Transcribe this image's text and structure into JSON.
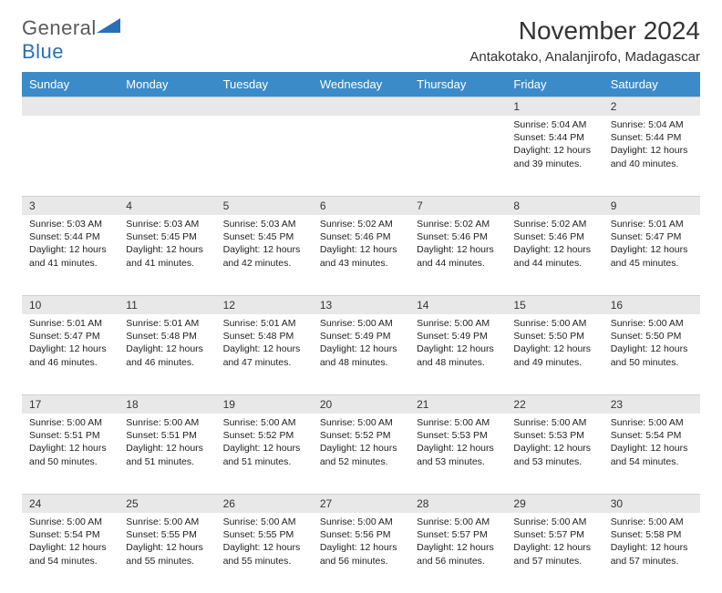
{
  "logo": {
    "general": "General",
    "blue": "Blue"
  },
  "title": "November 2024",
  "location": "Antakotako, Analanjirofo, Madagascar",
  "colors": {
    "header_bg": "#3b8bc9",
    "header_fg": "#ffffff",
    "daynum_bg": "#e8e8e8",
    "text": "#222222",
    "logo_gray": "#5a5a5a",
    "logo_blue": "#2a6fb5",
    "rule": "#bcbcbc"
  },
  "typography": {
    "title_fontsize": 28,
    "location_fontsize": 15,
    "dayheader_fontsize": 13,
    "daynum_fontsize": 12,
    "body_fontsize": 10.5
  },
  "day_headers": [
    "Sunday",
    "Monday",
    "Tuesday",
    "Wednesday",
    "Thursday",
    "Friday",
    "Saturday"
  ],
  "weeks": [
    [
      null,
      null,
      null,
      null,
      null,
      {
        "n": "1",
        "sunrise": "Sunrise: 5:04 AM",
        "sunset": "Sunset: 5:44 PM",
        "daylight": "Daylight: 12 hours and 39 minutes."
      },
      {
        "n": "2",
        "sunrise": "Sunrise: 5:04 AM",
        "sunset": "Sunset: 5:44 PM",
        "daylight": "Daylight: 12 hours and 40 minutes."
      }
    ],
    [
      {
        "n": "3",
        "sunrise": "Sunrise: 5:03 AM",
        "sunset": "Sunset: 5:44 PM",
        "daylight": "Daylight: 12 hours and 41 minutes."
      },
      {
        "n": "4",
        "sunrise": "Sunrise: 5:03 AM",
        "sunset": "Sunset: 5:45 PM",
        "daylight": "Daylight: 12 hours and 41 minutes."
      },
      {
        "n": "5",
        "sunrise": "Sunrise: 5:03 AM",
        "sunset": "Sunset: 5:45 PM",
        "daylight": "Daylight: 12 hours and 42 minutes."
      },
      {
        "n": "6",
        "sunrise": "Sunrise: 5:02 AM",
        "sunset": "Sunset: 5:46 PM",
        "daylight": "Daylight: 12 hours and 43 minutes."
      },
      {
        "n": "7",
        "sunrise": "Sunrise: 5:02 AM",
        "sunset": "Sunset: 5:46 PM",
        "daylight": "Daylight: 12 hours and 44 minutes."
      },
      {
        "n": "8",
        "sunrise": "Sunrise: 5:02 AM",
        "sunset": "Sunset: 5:46 PM",
        "daylight": "Daylight: 12 hours and 44 minutes."
      },
      {
        "n": "9",
        "sunrise": "Sunrise: 5:01 AM",
        "sunset": "Sunset: 5:47 PM",
        "daylight": "Daylight: 12 hours and 45 minutes."
      }
    ],
    [
      {
        "n": "10",
        "sunrise": "Sunrise: 5:01 AM",
        "sunset": "Sunset: 5:47 PM",
        "daylight": "Daylight: 12 hours and 46 minutes."
      },
      {
        "n": "11",
        "sunrise": "Sunrise: 5:01 AM",
        "sunset": "Sunset: 5:48 PM",
        "daylight": "Daylight: 12 hours and 46 minutes."
      },
      {
        "n": "12",
        "sunrise": "Sunrise: 5:01 AM",
        "sunset": "Sunset: 5:48 PM",
        "daylight": "Daylight: 12 hours and 47 minutes."
      },
      {
        "n": "13",
        "sunrise": "Sunrise: 5:00 AM",
        "sunset": "Sunset: 5:49 PM",
        "daylight": "Daylight: 12 hours and 48 minutes."
      },
      {
        "n": "14",
        "sunrise": "Sunrise: 5:00 AM",
        "sunset": "Sunset: 5:49 PM",
        "daylight": "Daylight: 12 hours and 48 minutes."
      },
      {
        "n": "15",
        "sunrise": "Sunrise: 5:00 AM",
        "sunset": "Sunset: 5:50 PM",
        "daylight": "Daylight: 12 hours and 49 minutes."
      },
      {
        "n": "16",
        "sunrise": "Sunrise: 5:00 AM",
        "sunset": "Sunset: 5:50 PM",
        "daylight": "Daylight: 12 hours and 50 minutes."
      }
    ],
    [
      {
        "n": "17",
        "sunrise": "Sunrise: 5:00 AM",
        "sunset": "Sunset: 5:51 PM",
        "daylight": "Daylight: 12 hours and 50 minutes."
      },
      {
        "n": "18",
        "sunrise": "Sunrise: 5:00 AM",
        "sunset": "Sunset: 5:51 PM",
        "daylight": "Daylight: 12 hours and 51 minutes."
      },
      {
        "n": "19",
        "sunrise": "Sunrise: 5:00 AM",
        "sunset": "Sunset: 5:52 PM",
        "daylight": "Daylight: 12 hours and 51 minutes."
      },
      {
        "n": "20",
        "sunrise": "Sunrise: 5:00 AM",
        "sunset": "Sunset: 5:52 PM",
        "daylight": "Daylight: 12 hours and 52 minutes."
      },
      {
        "n": "21",
        "sunrise": "Sunrise: 5:00 AM",
        "sunset": "Sunset: 5:53 PM",
        "daylight": "Daylight: 12 hours and 53 minutes."
      },
      {
        "n": "22",
        "sunrise": "Sunrise: 5:00 AM",
        "sunset": "Sunset: 5:53 PM",
        "daylight": "Daylight: 12 hours and 53 minutes."
      },
      {
        "n": "23",
        "sunrise": "Sunrise: 5:00 AM",
        "sunset": "Sunset: 5:54 PM",
        "daylight": "Daylight: 12 hours and 54 minutes."
      }
    ],
    [
      {
        "n": "24",
        "sunrise": "Sunrise: 5:00 AM",
        "sunset": "Sunset: 5:54 PM",
        "daylight": "Daylight: 12 hours and 54 minutes."
      },
      {
        "n": "25",
        "sunrise": "Sunrise: 5:00 AM",
        "sunset": "Sunset: 5:55 PM",
        "daylight": "Daylight: 12 hours and 55 minutes."
      },
      {
        "n": "26",
        "sunrise": "Sunrise: 5:00 AM",
        "sunset": "Sunset: 5:55 PM",
        "daylight": "Daylight: 12 hours and 55 minutes."
      },
      {
        "n": "27",
        "sunrise": "Sunrise: 5:00 AM",
        "sunset": "Sunset: 5:56 PM",
        "daylight": "Daylight: 12 hours and 56 minutes."
      },
      {
        "n": "28",
        "sunrise": "Sunrise: 5:00 AM",
        "sunset": "Sunset: 5:57 PM",
        "daylight": "Daylight: 12 hours and 56 minutes."
      },
      {
        "n": "29",
        "sunrise": "Sunrise: 5:00 AM",
        "sunset": "Sunset: 5:57 PM",
        "daylight": "Daylight: 12 hours and 57 minutes."
      },
      {
        "n": "30",
        "sunrise": "Sunrise: 5:00 AM",
        "sunset": "Sunset: 5:58 PM",
        "daylight": "Daylight: 12 hours and 57 minutes."
      }
    ]
  ]
}
